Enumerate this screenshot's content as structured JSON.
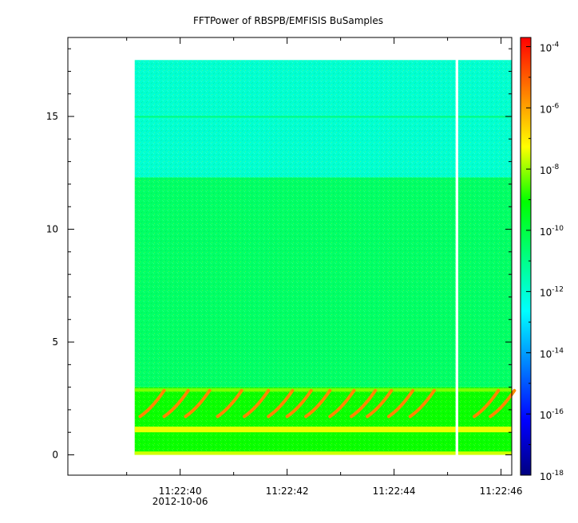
{
  "chart_data": {
    "type": "heatmap",
    "title": "FFTPower of RBSPB/EMFISIS  BuSamples",
    "xlabel": "",
    "ylabel": "",
    "x_ticks": [
      {
        "value": 40,
        "label": "11:22:40"
      },
      {
        "value": 42,
        "label": "11:22:42"
      },
      {
        "value": 44,
        "label": "11:22:44"
      },
      {
        "value": 46,
        "label": "11:22:46"
      }
    ],
    "x_date_label": "2012-10-06",
    "x_range_seconds": [
      37.9,
      46.2
    ],
    "y_ticks": [
      0,
      5,
      10,
      15
    ],
    "y_range": [
      -0.9,
      18.5
    ],
    "data_y_extent": [
      0,
      17.5
    ],
    "data_x_extent_seconds": [
      39.15,
      46.2
    ],
    "gap_seconds": [
      45.15,
      45.2
    ],
    "colorbar": {
      "scale": "log",
      "ticks": [
        {
          "base": "10",
          "exp": "-4"
        },
        {
          "base": "10",
          "exp": "-6"
        },
        {
          "base": "10",
          "exp": "-8"
        },
        {
          "base": "10",
          "exp": "-10"
        },
        {
          "base": "10",
          "exp": "-12"
        },
        {
          "base": "10",
          "exp": "-14"
        },
        {
          "base": "10",
          "exp": "-16"
        },
        {
          "base": "10",
          "exp": "-18"
        }
      ],
      "range_exp": [
        -18,
        -3.7
      ]
    },
    "bands": [
      {
        "y_from": 12.3,
        "y_to": 17.5,
        "log_power": -12.0
      },
      {
        "y_from": 3.0,
        "y_to": 12.3,
        "log_power": -10.5
      },
      {
        "y_from": 0,
        "y_to": 3.0,
        "log_power": -9.0
      }
    ]
  }
}
